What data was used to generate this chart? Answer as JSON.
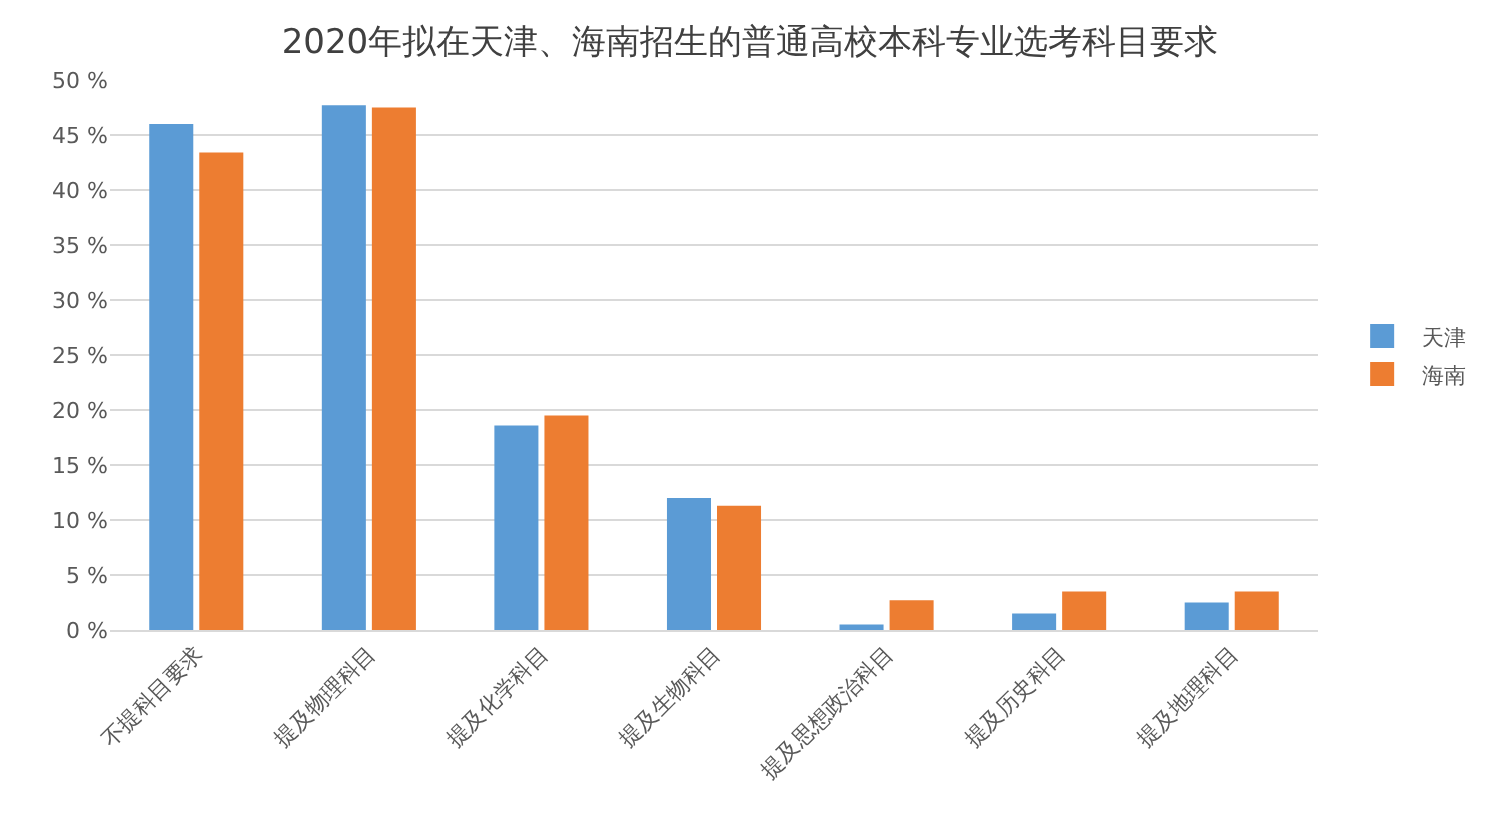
{
  "chart_data": {
    "type": "bar",
    "title": "2020年拟在天津、海南招生的普通高校本科专业选考科目要求",
    "categories": [
      "不提科目要求",
      "提及物理科目",
      "提及化学科目",
      "提及生物科目",
      "提及思想政治科目",
      "提及历史科目",
      "提及地理科目"
    ],
    "series": [
      {
        "name": "天津",
        "color": "#5b9bd5",
        "values": [
          46.0,
          47.7,
          18.6,
          12.0,
          0.5,
          1.5,
          2.5
        ]
      },
      {
        "name": "海南",
        "color": "#ed7d31",
        "values": [
          43.4,
          47.5,
          19.5,
          11.3,
          2.7,
          3.5,
          3.5
        ]
      }
    ],
    "ylim": [
      0,
      50
    ],
    "yticks": [
      {
        "value": 0,
        "label": "0 %"
      },
      {
        "value": 5,
        "label": "5 %"
      },
      {
        "value": 10,
        "label": "10 %"
      },
      {
        "value": 15,
        "label": "15 %"
      },
      {
        "value": 20,
        "label": "20 %"
      },
      {
        "value": 25,
        "label": "25 %"
      },
      {
        "value": 30,
        "label": "30 %"
      },
      {
        "value": 35,
        "label": "35 %"
      },
      {
        "value": 40,
        "label": "40 %"
      },
      {
        "value": 45,
        "label": "45 %"
      },
      {
        "value": 50,
        "label": "50 %"
      }
    ],
    "grid": "y",
    "legend": "right"
  }
}
